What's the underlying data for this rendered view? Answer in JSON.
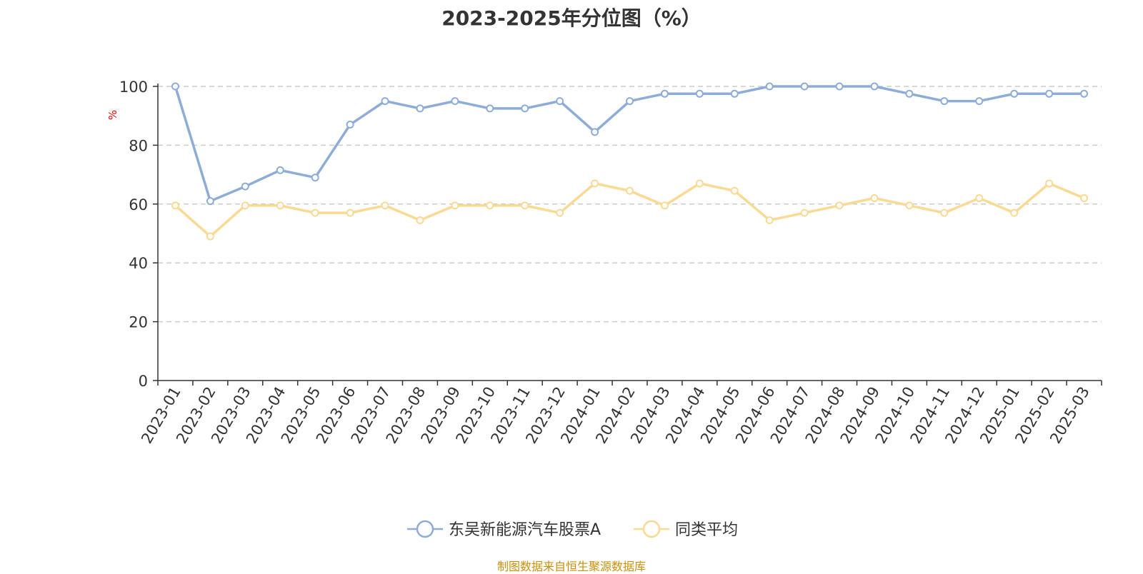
{
  "chart_data": {
    "type": "line",
    "title": "2023-2025年分位图（%）",
    "ylabel": "%",
    "xlabel": "",
    "ylim": [
      0,
      100
    ],
    "yticks": [
      0,
      20,
      40,
      60,
      80,
      100
    ],
    "grid": true,
    "legend_position": "bottom-center",
    "categories": [
      "2023-01",
      "2023-02",
      "2023-03",
      "2023-04",
      "2023-05",
      "2023-06",
      "2023-07",
      "2023-08",
      "2023-09",
      "2023-10",
      "2023-11",
      "2023-12",
      "2024-01",
      "2024-02",
      "2024-03",
      "2024-04",
      "2024-05",
      "2024-06",
      "2024-07",
      "2024-08",
      "2024-09",
      "2024-10",
      "2024-11",
      "2024-12",
      "2025-01",
      "2025-02",
      "2025-03"
    ],
    "series": [
      {
        "name": "东吴新能源汽车股票A",
        "color": "#8eacd8",
        "values": [
          100,
          61,
          66,
          71.5,
          69,
          87,
          95,
          92.5,
          95,
          92.5,
          92.5,
          95,
          84.5,
          95,
          97.5,
          97.5,
          97.5,
          100,
          100,
          100,
          100,
          97.5,
          95,
          95,
          97.5,
          97.5,
          97.5
        ]
      },
      {
        "name": "同类平均",
        "color": "#fad993",
        "values": [
          59.5,
          49,
          59.5,
          59.5,
          57,
          57,
          59.5,
          54.5,
          59.5,
          59.5,
          59.5,
          57,
          67,
          64.5,
          59.5,
          67,
          64.5,
          54.5,
          57,
          59.5,
          62,
          59.5,
          57,
          62,
          57,
          67,
          62
        ]
      }
    ]
  },
  "source_note": "制图数据来自恒生聚源数据库",
  "colors": {
    "axis": "#333333",
    "grid": "#cccccc",
    "ylabel": "#ff0000",
    "source": "#c8900a"
  }
}
